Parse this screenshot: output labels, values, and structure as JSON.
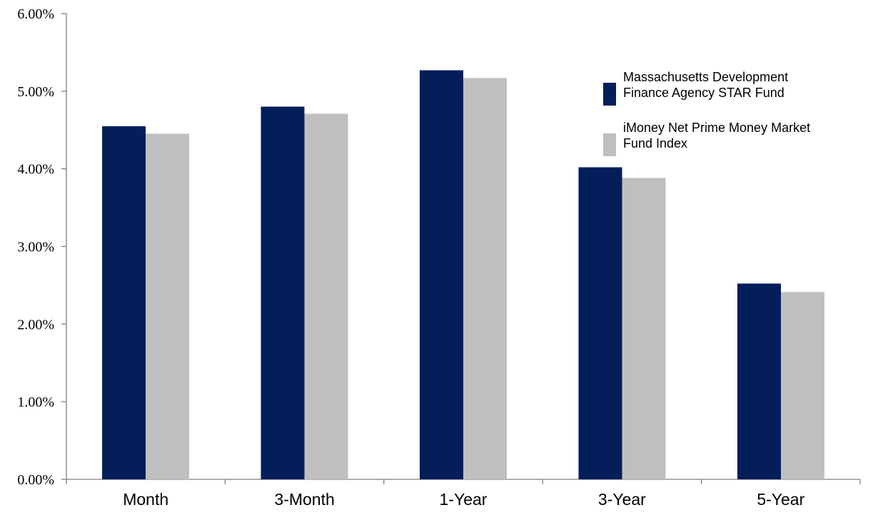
{
  "chart_data": {
    "type": "bar",
    "categories": [
      "Month",
      "3-Month",
      "1-Year",
      "3-Year",
      "5-Year"
    ],
    "series": [
      {
        "name": "Massachusetts Development Finance Agency STAR Fund",
        "legend_lines": [
          "Massachusetts Development",
          "Finance Agency STAR Fund"
        ],
        "color": "#041E5A",
        "values": [
          4.55,
          4.8,
          5.27,
          4.02,
          2.52
        ]
      },
      {
        "name": "iMoney Net Prime Money Market Fund Index",
        "legend_lines": [
          "iMoney Net Prime Money Market",
          "Fund Index"
        ],
        "color": "#BFBFBF",
        "values": [
          4.45,
          4.71,
          5.17,
          3.88,
          2.41
        ]
      }
    ],
    "y_ticks": [
      "0.00%",
      "1.00%",
      "2.00%",
      "3.00%",
      "4.00%",
      "5.00%",
      "6.00%"
    ],
    "ylim": [
      0,
      6
    ],
    "title": "",
    "xlabel": "",
    "ylabel": "",
    "grid": false,
    "legend_position": "top-right"
  }
}
